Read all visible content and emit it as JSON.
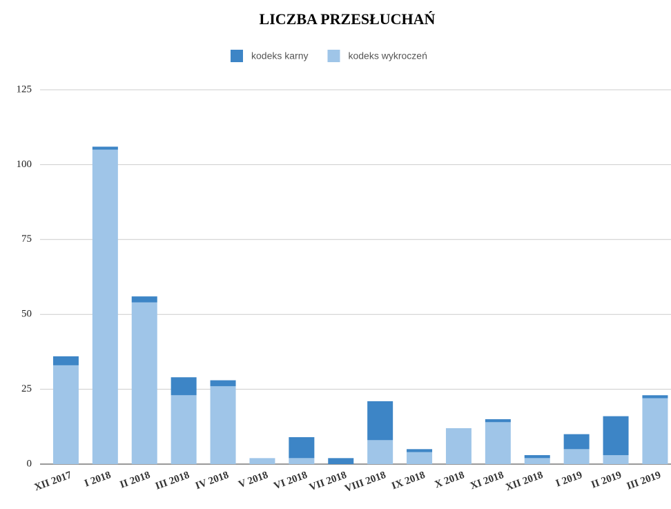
{
  "chart_data": {
    "type": "stacked_bar",
    "title": "LICZBA PRZESŁUCHAŃ",
    "categories": [
      "XII 2017",
      "I 2018",
      "II 2018",
      "III 2018",
      "IV 2018",
      "V 2018",
      "VI 2018",
      "VII 2018",
      "VIII 2018",
      "IX 2018",
      "X 2018",
      "XI 2018",
      "XII 2018",
      "I 2019",
      "II 2019",
      "III 2019"
    ],
    "series": [
      {
        "name": "kodeks karny",
        "color": "#3d85c6",
        "values": [
          3,
          1,
          2,
          6,
          2,
          0,
          7,
          2,
          13,
          1,
          0,
          1,
          1,
          5,
          13,
          1
        ]
      },
      {
        "name": "kodeks wykroczeń",
        "color": "#9fc5e8",
        "values": [
          33,
          105,
          54,
          23,
          26,
          2,
          2,
          0,
          8,
          4,
          12,
          14,
          2,
          5,
          3,
          22
        ]
      }
    ],
    "ylim": [
      0,
      125
    ],
    "yticks": [
      0,
      25,
      50,
      75,
      100,
      125
    ],
    "grid": true,
    "legend": "top"
  }
}
